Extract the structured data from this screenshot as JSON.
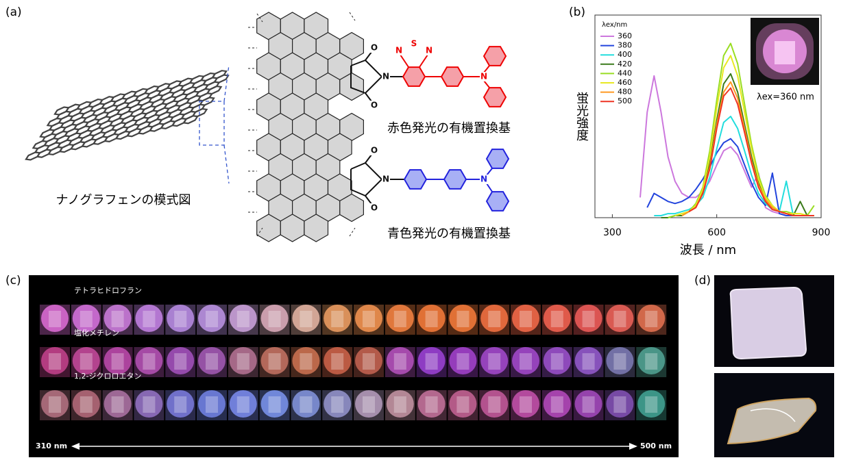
{
  "panel_labels": [
    "(a)",
    "(b)",
    "(c)",
    "(d)"
  ],
  "panel_a": {
    "caption": "ナノグラフェンの模式図",
    "red_label": "赤色発光の有機置換基",
    "blue_label": "青色発光の有機置換基",
    "atoms": [
      "O",
      "N",
      "O",
      "N",
      "S",
      "N",
      "N",
      "O",
      "N",
      "O",
      "N"
    ]
  },
  "chart_data": {
    "type": "line",
    "xlabel": "波長 / nm",
    "ylabel": "蛍光強度",
    "legend_title": "λex/nm",
    "inset_caption": "λex=360 nm",
    "legend": "upper left",
    "xlim": [
      250,
      900
    ],
    "xticks": [
      300,
      600,
      900
    ],
    "ylim": [
      0,
      100
    ],
    "x": [
      360,
      380,
      400,
      420,
      440,
      460,
      480,
      500,
      520,
      540,
      560,
      580,
      600,
      620,
      640,
      660,
      680,
      700,
      720,
      740,
      760,
      780,
      800,
      820,
      840,
      860,
      880
    ],
    "series": [
      {
        "name": "360",
        "color": "#cc77dd",
        "values": [
          null,
          10,
          52,
          70,
          52,
          30,
          18,
          12,
          10,
          10,
          13,
          18,
          26,
          33,
          35,
          31,
          23,
          15,
          22,
          5,
          3,
          2,
          1,
          1,
          1,
          1,
          1
        ]
      },
      {
        "name": "380",
        "color": "#2244dd",
        "values": [
          null,
          null,
          5,
          12,
          10,
          8,
          7,
          8,
          10,
          14,
          19,
          25,
          32,
          37,
          39,
          35,
          26,
          17,
          10,
          6,
          22,
          2,
          1,
          1,
          1,
          1,
          1
        ]
      },
      {
        "name": "400",
        "color": "#22dddd",
        "values": [
          null,
          null,
          null,
          1,
          1,
          2,
          2,
          3,
          4,
          6,
          10,
          20,
          34,
          47,
          50,
          44,
          33,
          21,
          12,
          7,
          4,
          3,
          18,
          1,
          1,
          1,
          1
        ]
      },
      {
        "name": "420",
        "color": "#3a7a1a",
        "values": [
          null,
          null,
          null,
          null,
          0,
          0,
          1,
          1,
          3,
          6,
          13,
          27,
          48,
          66,
          71,
          62,
          46,
          30,
          17,
          9,
          5,
          3,
          2,
          1,
          8,
          1,
          1
        ]
      },
      {
        "name": "440",
        "color": "#99dd22",
        "values": [
          null,
          null,
          null,
          null,
          null,
          0,
          1,
          2,
          3,
          7,
          15,
          33,
          58,
          80,
          86,
          76,
          56,
          36,
          21,
          11,
          6,
          3,
          3,
          2,
          2,
          1,
          6
        ]
      },
      {
        "name": "460",
        "color": "#e8e822",
        "values": [
          null,
          null,
          null,
          null,
          null,
          null,
          1,
          2,
          3,
          6,
          14,
          30,
          54,
          74,
          80,
          70,
          52,
          34,
          19,
          10,
          6,
          3,
          2,
          2,
          2,
          1,
          1
        ]
      },
      {
        "name": "480",
        "color": "#ff9922",
        "values": [
          null,
          null,
          null,
          null,
          null,
          null,
          null,
          1,
          3,
          5,
          12,
          25,
          46,
          62,
          67,
          59,
          44,
          28,
          16,
          9,
          5,
          3,
          2,
          1,
          1,
          1,
          1
        ]
      },
      {
        "name": "500",
        "color": "#ee3322",
        "values": [
          null,
          null,
          null,
          null,
          null,
          null,
          null,
          null,
          3,
          5,
          12,
          24,
          44,
          60,
          64,
          56,
          42,
          27,
          15,
          8,
          4,
          3,
          2,
          1,
          1,
          1,
          1
        ]
      }
    ]
  },
  "panel_c": {
    "solvents": [
      "テトラヒドロフラン",
      "塩化メチレン",
      "1,2-ジクロロエタン"
    ],
    "range_start": "310 nm",
    "range_end": "500 nm"
  }
}
